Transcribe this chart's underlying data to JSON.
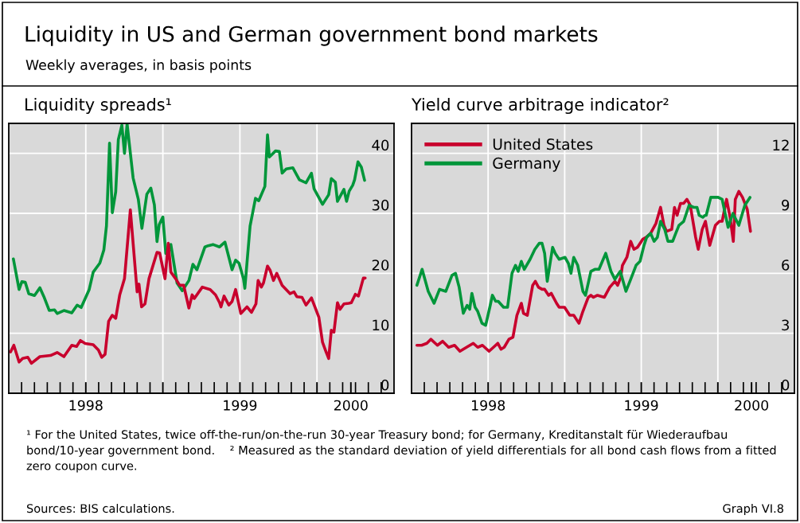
{
  "chart_data": [
    {
      "type": "other",
      "title": "Liquidity in US and German government bond markets",
      "subtitle": "Weekly averages, in basis points",
      "annotations": [
        "¹ For the United States, twice off-the-run/on-the-run 30-year Treasury bond; for Germany, Kreditanstalt für Wiederaufbau bond/10-year government bond.    ² Measured as the standard deviation of yield differentials for all bond cash flows from a fitted zero coupon curve.",
        "Sources: BIS calculations.",
        "Graph VI.8"
      ]
    },
    {
      "type": "line",
      "title": "Liquidity spreads¹",
      "xlim": [
        1998.0,
        2000.5
      ],
      "ylim": [
        0,
        45
      ],
      "xticks": [
        {
          "value": 1998.5,
          "label": "1998"
        },
        {
          "value": 1999.0,
          "label": null
        },
        {
          "value": 1999.5,
          "label": "1999"
        },
        {
          "value": 2000.0,
          "label": null
        },
        {
          "value": 2000.22,
          "label": "2000"
        }
      ],
      "yticks": [
        0,
        10,
        20,
        30,
        40
      ],
      "grid": true,
      "legend": false,
      "line_style": "solid",
      "marker": "none",
      "series": [
        {
          "color": "#00963a",
          "x": [
            1998.03,
            1998.067,
            1998.085,
            1998.107,
            1998.13,
            1998.167,
            1998.202,
            1998.228,
            1998.263,
            1998.297,
            1998.314,
            1998.358,
            1998.409,
            1998.444,
            1998.47,
            1998.496,
            1998.522,
            1998.548,
            1998.591,
            1998.617,
            1998.634,
            1998.654,
            1998.672,
            1998.694,
            1998.711,
            1998.734,
            1998.751,
            1998.768,
            1998.807,
            1998.841,
            1998.864,
            1998.896,
            1998.922,
            1998.945,
            1998.962,
            1998.976,
            1999.0,
            1999.019,
            1999.052,
            1999.092,
            1999.126,
            1999.169,
            1999.195,
            1999.221,
            1999.273,
            1999.294,
            1999.325,
            1999.368,
            1999.385,
            1999.403,
            1999.42,
            1999.449,
            1999.472,
            1999.494,
            1999.523,
            1999.532,
            1999.566,
            1999.601,
            1999.622,
            1999.662,
            1999.679,
            1999.691,
            1999.731,
            1999.756,
            1999.774,
            1999.8,
            1999.843,
            1999.886,
            1999.929,
            1999.964,
            1999.981,
            2000.036,
            2000.076,
            2000.093,
            2000.119,
            2000.133,
            2000.175,
            2000.192,
            2000.209,
            2000.232,
            2000.244,
            2000.266,
            2000.288,
            2000.309
          ],
          "values": [
            22.4,
            17.3,
            18.6,
            18.5,
            16.6,
            16.3,
            17.6,
            16.1,
            13.8,
            13.9,
            13.3,
            13.8,
            13.4,
            14.7,
            14.3,
            15.8,
            17.3,
            20.2,
            21.7,
            23.9,
            27.9,
            41.7,
            30.1,
            33.6,
            42.3,
            44.7,
            40.0,
            44.9,
            35.9,
            32.3,
            27.5,
            33.2,
            34.2,
            31.4,
            25.3,
            28.1,
            29.4,
            23.3,
            24.8,
            18.4,
            17.1,
            18.8,
            21.5,
            20.6,
            24.4,
            24.6,
            24.8,
            24.4,
            24.8,
            25.2,
            23.5,
            20.6,
            22.2,
            21.7,
            19.1,
            17.5,
            27.9,
            32.5,
            32.1,
            34.5,
            43.1,
            39.4,
            40.4,
            40.3,
            36.7,
            37.4,
            37.6,
            35.6,
            35.1,
            36.7,
            34.1,
            31.5,
            33.1,
            35.8,
            35.2,
            32.0,
            34.0,
            32.0,
            33.7,
            34.7,
            35.6,
            38.6,
            37.7,
            35.5
          ]
        },
        {
          "color": "#c8002d",
          "x": [
            1998.012,
            1998.033,
            1998.067,
            1998.09,
            1998.124,
            1998.147,
            1998.202,
            1998.271,
            1998.314,
            1998.358,
            1998.409,
            1998.44,
            1998.465,
            1998.496,
            1998.548,
            1998.582,
            1998.603,
            1998.625,
            1998.648,
            1998.672,
            1998.694,
            1998.72,
            1998.751,
            1998.789,
            1998.833,
            1998.845,
            1998.862,
            1998.884,
            1998.91,
            1998.962,
            1998.979,
            1999.014,
            1999.035,
            1999.052,
            1999.083,
            1999.109,
            1999.135,
            1999.169,
            1999.19,
            1999.204,
            1999.256,
            1999.307,
            1999.342,
            1999.368,
            1999.377,
            1999.397,
            1999.428,
            1999.449,
            1999.472,
            1999.506,
            1999.546,
            1999.575,
            1999.604,
            1999.618,
            1999.639,
            1999.653,
            1999.679,
            1999.696,
            1999.718,
            1999.739,
            1999.774,
            1999.826,
            1999.851,
            1999.869,
            1999.903,
            1999.929,
            1999.964,
            2000.012,
            2000.036,
            2000.059,
            2000.076,
            2000.093,
            2000.11,
            2000.133,
            2000.15,
            2000.175,
            2000.206,
            2000.223,
            2000.249,
            2000.269,
            2000.301,
            2000.313
          ],
          "values": [
            6.9,
            8.0,
            5.2,
            5.8,
            6.0,
            5.0,
            6.1,
            6.3,
            6.8,
            6.1,
            8.0,
            7.8,
            8.8,
            8.3,
            8.1,
            7.2,
            6.0,
            6.5,
            12.0,
            13.0,
            12.5,
            16.4,
            19.1,
            30.6,
            16.9,
            18.2,
            14.4,
            14.9,
            19.1,
            23.5,
            23.4,
            19.1,
            25.0,
            20.2,
            19.1,
            18.0,
            18.0,
            14.2,
            16.4,
            15.8,
            17.7,
            17.3,
            16.4,
            15.1,
            14.4,
            16.2,
            14.7,
            15.3,
            17.3,
            13.3,
            14.4,
            13.5,
            14.9,
            18.8,
            17.7,
            18.4,
            21.2,
            20.5,
            18.8,
            20.0,
            18.0,
            16.6,
            16.9,
            16.1,
            16.0,
            14.7,
            15.9,
            12.7,
            8.5,
            6.9,
            5.8,
            10.5,
            10.2,
            15.1,
            14.0,
            14.9,
            15.0,
            15.1,
            16.5,
            16.2,
            19.2,
            19.2
          ]
        }
      ]
    },
    {
      "type": "line",
      "title": "Yield curve arbitrage indicator²",
      "xlim": [
        1998.0,
        2000.5
      ],
      "ylim": [
        0,
        13.5
      ],
      "xticks": [
        {
          "value": 1998.5,
          "label": "1998"
        },
        {
          "value": 1999.0,
          "label": null
        },
        {
          "value": 1999.5,
          "label": "1999"
        },
        {
          "value": 2000.0,
          "label": null
        },
        {
          "value": 2000.22,
          "label": "2000"
        }
      ],
      "yticks": [
        0,
        3,
        6,
        9,
        12
      ],
      "grid": true,
      "legend": "top left",
      "line_style": "solid",
      "marker": "none",
      "series": [
        {
          "name": "United States",
          "color": "#c8002d",
          "x": [
            1998.035,
            1998.066,
            1998.1,
            1998.126,
            1998.169,
            1998.203,
            1998.242,
            1998.281,
            1998.316,
            1998.359,
            1998.403,
            1998.432,
            1998.463,
            1998.506,
            1998.535,
            1998.563,
            1998.584,
            1998.605,
            1998.636,
            1998.662,
            1998.688,
            1998.717,
            1998.731,
            1998.756,
            1998.791,
            1998.808,
            1998.829,
            1998.852,
            1998.869,
            1998.895,
            1998.912,
            1998.947,
            1998.964,
            1998.999,
            1999.033,
            1999.059,
            1999.093,
            1999.119,
            1999.154,
            1999.171,
            1999.188,
            1999.214,
            1999.259,
            1999.294,
            1999.328,
            1999.346,
            1999.366,
            1999.377,
            1999.406,
            1999.431,
            1999.452,
            1999.475,
            1999.509,
            1999.532,
            1999.561,
            1999.596,
            1999.626,
            1999.648,
            1999.665,
            1999.699,
            1999.717,
            1999.734,
            1999.756,
            1999.777,
            1999.798,
            1999.82,
            1999.855,
            1999.872,
            1999.898,
            1999.919,
            1999.947,
            1999.984,
            2000.01,
            2000.028,
            2000.057,
            2000.08,
            2000.101,
            2000.114,
            2000.137,
            2000.161,
            2000.192,
            2000.213
          ],
          "values": [
            2.4,
            2.4,
            2.5,
            2.7,
            2.4,
            2.6,
            2.3,
            2.4,
            2.1,
            2.3,
            2.5,
            2.3,
            2.4,
            2.1,
            2.3,
            2.5,
            2.2,
            2.3,
            2.7,
            2.8,
            3.9,
            4.5,
            4.0,
            3.9,
            5.4,
            5.6,
            5.3,
            5.2,
            5.2,
            4.9,
            5.0,
            4.5,
            4.3,
            4.3,
            3.9,
            3.9,
            3.5,
            4.1,
            4.8,
            4.9,
            4.8,
            4.9,
            4.8,
            5.3,
            5.6,
            5.4,
            5.8,
            6.4,
            6.8,
            7.6,
            7.2,
            7.3,
            7.7,
            7.8,
            8.0,
            8.5,
            9.3,
            8.4,
            8.1,
            8.2,
            9.3,
            8.9,
            9.5,
            9.5,
            9.7,
            9.4,
            7.8,
            7.2,
            8.2,
            8.6,
            7.4,
            8.4,
            8.6,
            8.6,
            9.7,
            8.8,
            7.6,
            9.7,
            10.1,
            9.8,
            9.2,
            8.1
          ]
        },
        {
          "name": "Germany",
          "color": "#00963a",
          "x": [
            1998.035,
            1998.069,
            1998.109,
            1998.147,
            1998.183,
            1998.224,
            1998.264,
            1998.287,
            1998.311,
            1998.338,
            1998.363,
            1998.38,
            1998.394,
            1998.415,
            1998.432,
            1998.46,
            1998.484,
            1998.511,
            1998.528,
            1998.549,
            1998.566,
            1998.601,
            1998.627,
            1998.656,
            1998.679,
            1998.696,
            1998.717,
            1998.736,
            1998.774,
            1998.805,
            1998.834,
            1998.852,
            1998.869,
            1998.886,
            1998.921,
            1998.938,
            1998.964,
            1999.002,
            1999.024,
            1999.041,
            1999.059,
            1999.085,
            1999.119,
            1999.136,
            1999.171,
            1999.197,
            1999.224,
            1999.268,
            1999.302,
            1999.328,
            1999.363,
            1999.4,
            1999.431,
            1999.466,
            1999.492,
            1999.518,
            1999.535,
            1999.561,
            1999.584,
            1999.605,
            1999.626,
            1999.653,
            1999.674,
            1999.705,
            1999.725,
            1999.746,
            1999.777,
            1999.812,
            1999.843,
            1999.864,
            1999.878,
            1999.902,
            1999.916,
            1999.924,
            1999.954,
            2000.002,
            2000.028,
            2000.067,
            2000.098,
            2000.137,
            2000.176,
            2000.21
          ],
          "values": [
            5.4,
            6.2,
            5.1,
            4.5,
            5.2,
            5.1,
            5.9,
            6.0,
            5.3,
            4.0,
            4.4,
            4.2,
            5.0,
            4.3,
            4.1,
            3.5,
            3.4,
            4.3,
            4.9,
            4.6,
            4.6,
            4.3,
            4.3,
            6.0,
            6.4,
            6.1,
            6.6,
            6.2,
            6.7,
            7.2,
            7.5,
            7.5,
            7.0,
            5.6,
            7.3,
            7.0,
            6.7,
            6.8,
            6.5,
            6.0,
            6.8,
            6.4,
            5.1,
            4.9,
            6.1,
            6.2,
            6.2,
            7.0,
            6.1,
            5.7,
            6.1,
            5.1,
            5.7,
            6.4,
            6.6,
            7.4,
            7.8,
            8.0,
            7.6,
            7.8,
            8.6,
            8.2,
            7.6,
            7.6,
            8.0,
            8.4,
            8.6,
            9.4,
            9.3,
            9.3,
            8.9,
            8.8,
            8.9,
            8.9,
            9.8,
            9.8,
            9.7,
            8.3,
            9.0,
            8.4,
            9.4,
            9.8
          ]
        }
      ]
    }
  ]
}
